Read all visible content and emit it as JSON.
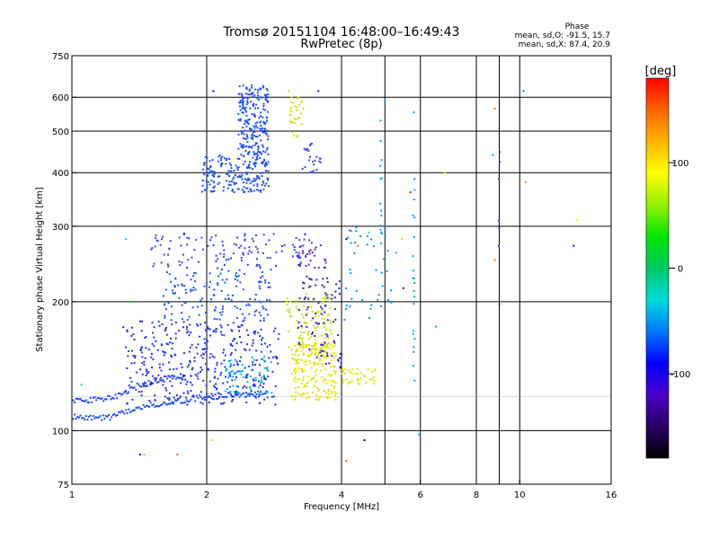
{
  "chart_data": {
    "type": "scatter",
    "title": "Tromsø 20151104 16:48:00–16:49:43",
    "subtitle": "RwPretec (8p)",
    "xlabel": "Frequency [MHz]",
    "ylabel": "Stationary phase Virtual Height [km]",
    "x_scale": "log",
    "y_scale": "log",
    "xlim": [
      1,
      16
    ],
    "ylim": [
      75,
      750
    ],
    "x_ticks": [
      1,
      2,
      4,
      6,
      8,
      10,
      16
    ],
    "x_grid_values": [
      2,
      4,
      5,
      6,
      8,
      9,
      10
    ],
    "y_ticks": [
      75,
      100,
      200,
      300,
      400,
      500,
      600,
      750
    ],
    "y_grid_values": [
      100,
      200,
      300,
      400,
      500,
      600
    ],
    "y_minor_grid_values": [
      120
    ],
    "grid": true,
    "phase_box": {
      "heading": "Phase",
      "line1": "mean, sd,O: -91.5, 15.7",
      "line2": "mean, sd,X:  87.4, 20.9"
    },
    "colorbar": {
      "label": "[deg]",
      "ticks": [
        100,
        0,
        -100
      ],
      "range": [
        -180,
        180
      ],
      "colors": [
        "#000000",
        "#2a0066",
        "#4b00c8",
        "#0000ff",
        "#0078ff",
        "#00dcdc",
        "#00c864",
        "#00e600",
        "#96f000",
        "#ffff00",
        "#ffb400",
        "#ff6400",
        "#ff0000"
      ]
    },
    "traces": [
      {
        "kind": "line",
        "color": "#1e4cff",
        "jitter": 0.015,
        "points": [
          [
            1.0,
            108
          ],
          [
            1.2,
            107
          ],
          [
            1.33,
            111
          ],
          [
            1.5,
            115
          ],
          [
            1.7,
            117
          ],
          [
            2.0,
            120
          ],
          [
            2.3,
            121
          ],
          [
            2.7,
            122
          ]
        ]
      },
      {
        "kind": "line",
        "color": "#1e4cff",
        "jitter": 0.015,
        "points": [
          [
            1.0,
            118
          ],
          [
            1.15,
            118
          ],
          [
            1.28,
            121
          ],
          [
            1.4,
            127
          ],
          [
            1.55,
            131
          ],
          [
            1.8,
            135
          ]
        ]
      },
      {
        "kind": "blob",
        "color": "#2233ee",
        "fmin": 1.3,
        "fmax": 2.9,
        "hmin": 115,
        "hmax": 180,
        "n": 400
      },
      {
        "kind": "blob",
        "color": "#1a55ff",
        "fmin": 1.6,
        "fmax": 2.8,
        "hmin": 180,
        "hmax": 240,
        "n": 150
      },
      {
        "kind": "blob",
        "color": "#3344ee",
        "fmin": 1.5,
        "fmax": 3.4,
        "hmin": 240,
        "hmax": 290,
        "n": 120
      },
      {
        "kind": "blob",
        "color": "#1e50ff",
        "fmin": 1.95,
        "fmax": 2.75,
        "hmin": 360,
        "hmax": 440,
        "n": 200
      },
      {
        "kind": "blob",
        "color": "#1e50ff",
        "fmin": 2.35,
        "fmax": 2.75,
        "hmin": 440,
        "hmax": 640,
        "n": 220
      },
      {
        "kind": "blob",
        "color": "#00b4e6",
        "fmin": 2.2,
        "fmax": 2.8,
        "hmin": 120,
        "hmax": 150,
        "n": 60
      },
      {
        "kind": "blob",
        "color": "#e6e600",
        "fmin": 3.1,
        "fmax": 3.9,
        "hmin": 118,
        "hmax": 160,
        "n": 200
      },
      {
        "kind": "blob",
        "color": "#c8e600",
        "fmin": 3.0,
        "fmax": 3.8,
        "hmin": 150,
        "hmax": 210,
        "n": 100
      },
      {
        "kind": "blob",
        "color": "#3322cc",
        "fmin": 3.2,
        "fmax": 4.0,
        "hmin": 140,
        "hmax": 230,
        "n": 90
      },
      {
        "kind": "blob",
        "color": "#6622cc",
        "fmin": 3.2,
        "fmax": 3.7,
        "hmin": 240,
        "hmax": 280,
        "n": 30
      },
      {
        "kind": "blob",
        "color": "#cce600",
        "fmin": 3.05,
        "fmax": 3.3,
        "hmin": 480,
        "hmax": 600,
        "n": 30
      },
      {
        "kind": "blob",
        "color": "#3344ee",
        "fmin": 3.2,
        "fmax": 3.6,
        "hmin": 400,
        "hmax": 470,
        "n": 25
      },
      {
        "kind": "blob",
        "color": "#e6e600",
        "fmin": 4.0,
        "fmax": 4.8,
        "hmin": 128,
        "hmax": 140,
        "n": 40
      },
      {
        "kind": "blob",
        "color": "#0096ff",
        "fmin": 4.0,
        "fmax": 5.2,
        "hmin": 180,
        "hmax": 300,
        "n": 40
      },
      {
        "kind": "column",
        "color": "#00aaff",
        "f": 4.9,
        "hmin": 260,
        "hmax": 600,
        "n": 14
      },
      {
        "kind": "column",
        "color": "#00aaff",
        "f": 5.8,
        "hmin": 120,
        "hmax": 600,
        "n": 22
      },
      {
        "kind": "column",
        "color": "#3344ee",
        "f": 9.0,
        "hmin": 190,
        "hmax": 560,
        "n": 7
      }
    ],
    "sparse_points": [
      [
        1.32,
        280,
        "#00c8ff"
      ],
      [
        1.35,
        200,
        "#22cc22"
      ],
      [
        1.42,
        88,
        "#0000ff"
      ],
      [
        1.45,
        88,
        "#ffaa00"
      ],
      [
        1.72,
        88,
        "#ff6600"
      ],
      [
        1.05,
        128,
        "#00c8ff"
      ],
      [
        2.05,
        95,
        "#ffcc00"
      ],
      [
        2.07,
        620,
        "#0000ff"
      ],
      [
        3.05,
        620,
        "#ffcc00"
      ],
      [
        3.55,
        620,
        "#4400aa"
      ],
      [
        4.1,
        85,
        "#ff6600"
      ],
      [
        4.5,
        95,
        "#000088"
      ],
      [
        5.0,
        590,
        "#00aaff"
      ],
      [
        5.7,
        360,
        "#ff2200"
      ],
      [
        5.5,
        215,
        "#3300aa"
      ],
      [
        6.5,
        175,
        "#00aaff"
      ],
      [
        6.8,
        400,
        "#ffdd00"
      ],
      [
        8.8,
        565,
        "#ff6600"
      ],
      [
        8.8,
        250,
        "#ff8800"
      ],
      [
        10.2,
        620,
        "#0077ff"
      ],
      [
        10.3,
        380,
        "#ff8800"
      ],
      [
        13.2,
        270,
        "#0000cc"
      ],
      [
        13.4,
        310,
        "#ffee00"
      ],
      [
        8.7,
        440,
        "#00aaff"
      ],
      [
        5.95,
        98,
        "#00ccff"
      ],
      [
        5.3,
        260,
        "#33aaff"
      ],
      [
        5.45,
        280,
        "#ccee00"
      ],
      [
        4.6,
        290,
        "#00ddaa"
      ],
      [
        4.35,
        270,
        "#ff6600"
      ],
      [
        4.1,
        280,
        "#0000aa"
      ]
    ]
  }
}
